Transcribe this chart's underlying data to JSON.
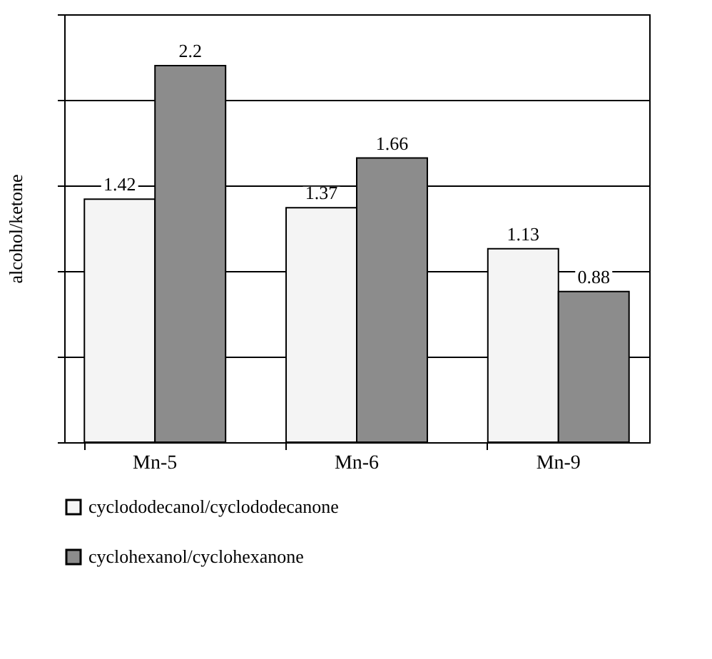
{
  "chart_data": {
    "type": "bar",
    "ylabel": "alcohol/ketone",
    "categories": [
      "Mn-5",
      "Mn-6",
      "Mn-9"
    ],
    "series": [
      {
        "name": "cyclododecanol/cyclododecanone",
        "color": "#f4f4f4",
        "values": [
          1.42,
          1.37,
          1.13
        ]
      },
      {
        "name": "cyclohexanol/cyclohexanone",
        "color": "#8c8c8c",
        "values": [
          2.2,
          1.66,
          0.88
        ]
      }
    ],
    "ylim": [
      0,
      2.5
    ],
    "yticks": [
      {
        "value": 0,
        "label": null
      },
      {
        "value": 0.5,
        "label": null
      },
      {
        "value": 1,
        "label": null
      },
      {
        "value": 1.5,
        "label": null
      },
      {
        "value": 2,
        "label": null
      },
      {
        "value": 2.5,
        "label": null
      }
    ],
    "grid": "y",
    "legend": "bottom",
    "data_labels": true
  }
}
